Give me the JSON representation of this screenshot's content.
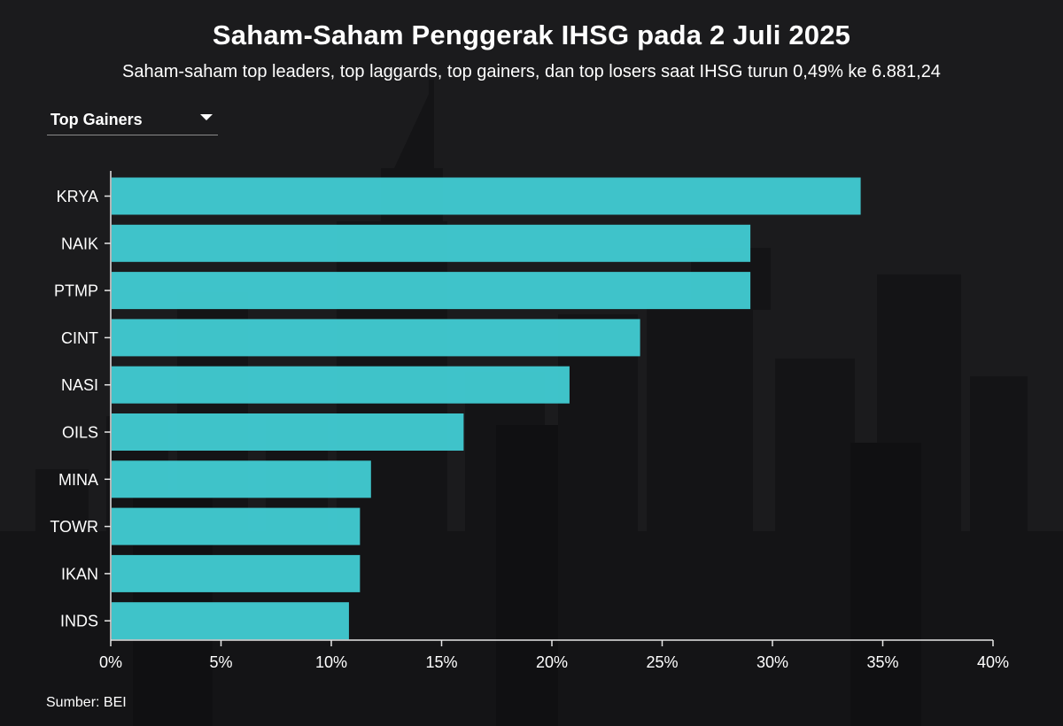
{
  "header": {
    "title": "Saham-Saham Penggerak IHSG pada 2 Juli 2025",
    "subtitle": "Saham-saham top leaders, top laggards, top gainers, dan top losers saat IHSG turun 0,49% ke 6.881,24"
  },
  "filter": {
    "selected": "Top Gainers",
    "icon": "chevron-down-icon"
  },
  "source": "Sumber: BEI",
  "colors": {
    "bar": "#41c9cf",
    "background": "#1b1b1d",
    "text": "#ffffff",
    "axis": "#e6e6e6"
  },
  "chart_data": {
    "type": "bar",
    "orientation": "horizontal",
    "categories": [
      "KRYA",
      "NAIK",
      "PTMP",
      "CINT",
      "NASI",
      "OILS",
      "MINA",
      "TOWR",
      "IKAN",
      "INDS"
    ],
    "values": [
      34.0,
      29.0,
      29.0,
      24.0,
      20.8,
      16.0,
      11.8,
      11.3,
      11.3,
      10.8
    ],
    "xlim": [
      0,
      40
    ],
    "xticks": [
      0,
      5,
      10,
      15,
      20,
      25,
      30,
      35,
      40
    ],
    "xtick_labels": [
      "0%",
      "5%",
      "10%",
      "15%",
      "20%",
      "25%",
      "30%",
      "35%",
      "40%"
    ],
    "xlabel": "",
    "ylabel": "",
    "grid": false,
    "legend": "none"
  }
}
